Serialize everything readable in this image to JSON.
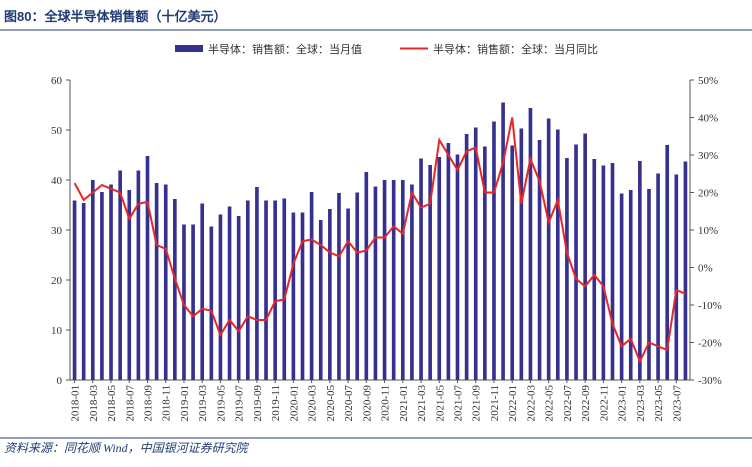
{
  "chart_data": {
    "type": "bar_line",
    "title": "图80：全球半导体销售额（十亿美元）",
    "source": "资料来源：同花顺 Wind，中国银河证券研究院",
    "categories": [
      "2018-01",
      null,
      "2018-03",
      null,
      "2018-05",
      null,
      "2018-07",
      null,
      "2018-09",
      null,
      "2018-11",
      null,
      "2019-01",
      null,
      "2019-03",
      null,
      "2019-05",
      null,
      "2019-07",
      null,
      "2019-09",
      null,
      "2019-11",
      null,
      "2020-01",
      null,
      "2020-03",
      null,
      "2020-05",
      null,
      "2020-07",
      null,
      "2020-09",
      null,
      "2020-11",
      null,
      "2021-01",
      null,
      "2021-03",
      null,
      "2021-05",
      null,
      "2021-07",
      null,
      "2021-09",
      null,
      "2021-11",
      null,
      "2022-01",
      null,
      "2022-03",
      null,
      "2022-05",
      null,
      "2022-07",
      null,
      "2022-09",
      null,
      "2022-11",
      null,
      "2023-01",
      null,
      "2023-03",
      null,
      "2023-05",
      null,
      "2023-07",
      null
    ],
    "series": [
      {
        "name": "半导体：销售额：全球：当月值",
        "type": "bar",
        "color": "#34318f",
        "axis": "y",
        "values": [
          35.9,
          35.4,
          40.0,
          37.6,
          39.1,
          41.9,
          38.0,
          41.9,
          44.8,
          39.4,
          39.1,
          36.2,
          31.1,
          31.1,
          35.3,
          30.7,
          33.1,
          34.7,
          32.8,
          35.9,
          38.6,
          35.9,
          35.9,
          36.3,
          33.5,
          33.5,
          37.6,
          32.0,
          34.2,
          37.4,
          34.3,
          37.5,
          41.6,
          38.7,
          40.0,
          40.0,
          40.0,
          39.1,
          44.3,
          43.0,
          44.6,
          47.4,
          45.1,
          49.2,
          50.5,
          46.7,
          51.7,
          55.5,
          46.9,
          50.3,
          54.4,
          48.0,
          52.3,
          50.1,
          44.4,
          47.1,
          49.3,
          44.2,
          42.9,
          43.4,
          37.3,
          38.0,
          43.8,
          38.2,
          41.3,
          47.0,
          41.1,
          43.7
        ]
      },
      {
        "name": "半导体：销售额：全球：当月同比",
        "type": "line",
        "color": "#e8262a",
        "axis": "y2",
        "values": [
          22.5,
          18,
          20,
          22,
          21,
          20,
          13,
          17,
          17.5,
          6,
          5,
          -3,
          -10,
          -13,
          -11,
          -11.5,
          -18,
          -14,
          -17,
          -13,
          -14,
          -14,
          -9,
          -8.5,
          1,
          7,
          7.5,
          6,
          4,
          3,
          7,
          4,
          4.5,
          8,
          8,
          11,
          9,
          20,
          16,
          17,
          34,
          30,
          26,
          31,
          32,
          20,
          20,
          28,
          40,
          17,
          29,
          23,
          12,
          18,
          4,
          -3,
          -5,
          -2,
          -5,
          -15,
          -21,
          -19,
          -25,
          -20,
          -21,
          -22,
          -6,
          -7
        ]
      }
    ],
    "ylim": [
      0,
      60
    ],
    "yticks": [
      0,
      10,
      20,
      30,
      40,
      50,
      60
    ],
    "y2lim": [
      -30,
      50
    ],
    "y2ticks": [
      {
        "value": -30,
        "label": "-30%"
      },
      {
        "value": -20,
        "label": "-20%"
      },
      {
        "value": -10,
        "label": "-10%"
      },
      {
        "value": 0,
        "label": "0%"
      },
      {
        "value": 10,
        "label": "10%"
      },
      {
        "value": 20,
        "label": "20%"
      },
      {
        "value": 30,
        "label": "30%"
      },
      {
        "value": 40,
        "label": "40%"
      },
      {
        "value": 50,
        "label": "50%"
      }
    ],
    "grid": false
  }
}
